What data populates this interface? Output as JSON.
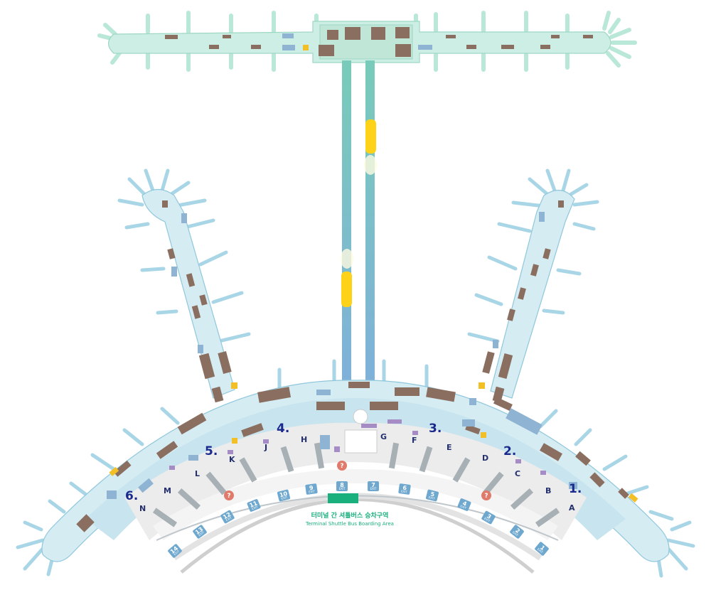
{
  "map": {
    "colors": {
      "concourse_fill": "#cdeee4",
      "terminal_fill": "#d6ecf3",
      "shop": "#8a6e5f",
      "service": "#8eb3d3",
      "exit_badge": "#6fa8cf",
      "shuttle_zone": "#19b07d",
      "zone_number": "#1a2a8c",
      "shuttle_train": "#ffd21a"
    },
    "zones": [
      {
        "label": "1."
      },
      {
        "label": "2."
      },
      {
        "label": "3."
      },
      {
        "label": "4."
      },
      {
        "label": "5."
      },
      {
        "label": "6."
      }
    ],
    "counters": [
      {
        "label": "A"
      },
      {
        "label": "B"
      },
      {
        "label": "C"
      },
      {
        "label": "D"
      },
      {
        "label": "E"
      },
      {
        "label": "F"
      },
      {
        "label": "G"
      },
      {
        "label": "H"
      },
      {
        "label": "J"
      },
      {
        "label": "K"
      },
      {
        "label": "L"
      },
      {
        "label": "M"
      },
      {
        "label": "N"
      }
    ],
    "exits": [
      {
        "num": "1",
        "sub": "EXIT"
      },
      {
        "num": "2",
        "sub": "EXIT"
      },
      {
        "num": "3",
        "sub": "EXIT"
      },
      {
        "num": "4",
        "sub": "EXIT"
      },
      {
        "num": "5",
        "sub": "EXIT"
      },
      {
        "num": "6",
        "sub": "EXIT"
      },
      {
        "num": "7",
        "sub": "EXIT"
      },
      {
        "num": "8",
        "sub": "EXIT"
      },
      {
        "num": "9",
        "sub": "EXIT"
      },
      {
        "num": "10",
        "sub": "EXIT"
      },
      {
        "num": "11",
        "sub": "EXIT"
      },
      {
        "num": "12",
        "sub": "EXIT"
      },
      {
        "num": "13",
        "sub": "EXIT"
      },
      {
        "num": "14",
        "sub": "EXIT"
      }
    ],
    "shuttle": {
      "label_ko": "터미널 간 셔틀버스 승차구역",
      "label_en": "Terminal Shuttle Bus Boarding Area"
    },
    "info_icons": [
      "info-icon",
      "info-icon",
      "info-icon",
      "info-icon"
    ]
  }
}
